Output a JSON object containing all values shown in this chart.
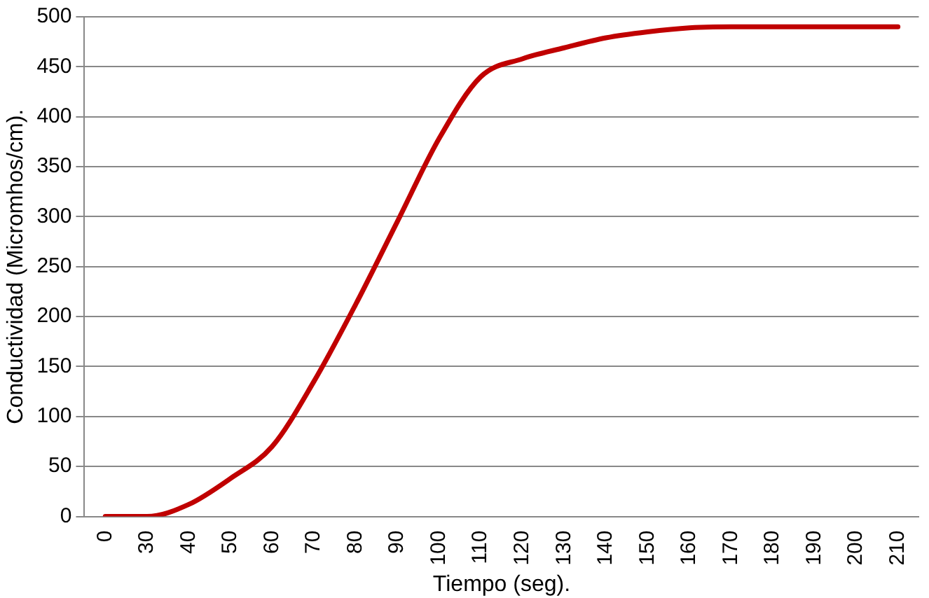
{
  "chart_data": {
    "type": "line",
    "xlabel": "Tiempo (seg).",
    "ylabel": "Conductividad (Micromhos/cm).",
    "categories": [
      "0",
      "30",
      "40",
      "50",
      "60",
      "70",
      "80",
      "90",
      "100",
      "110",
      "120",
      "130",
      "140",
      "150",
      "160",
      "170",
      "180",
      "190",
      "200",
      "210"
    ],
    "series": [
      {
        "color": "#c00000",
        "values": [
          0,
          0,
          12,
          38,
          70,
          135,
          212,
          295,
          378,
          440,
          458,
          469,
          479,
          485,
          489,
          490,
          490,
          490,
          490,
          490
        ]
      }
    ],
    "ylim": [
      0,
      500
    ],
    "yticks": [
      0,
      50,
      100,
      150,
      200,
      250,
      300,
      350,
      400,
      450,
      500
    ],
    "grid": "y",
    "legend": false,
    "marker": "none",
    "line_style": "solid"
  }
}
